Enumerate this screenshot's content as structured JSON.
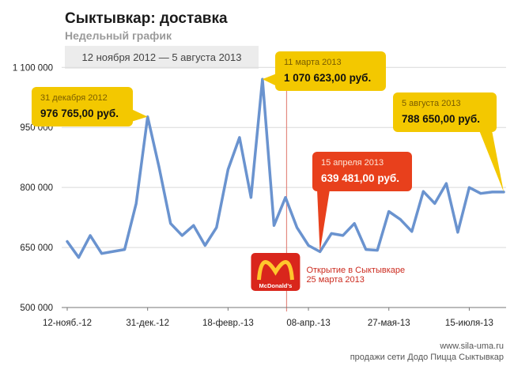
{
  "chart_data": {
    "type": "line",
    "title": "Сыктывкар: доставка",
    "subtitle": "Недельный график",
    "date_range": "12 ноября 2012 — 5 августа 2013",
    "ylim": [
      500000,
      1150000
    ],
    "y_ticks": [
      {
        "value": 500000,
        "label": "500 000"
      },
      {
        "value": 650000,
        "label": "650 000"
      },
      {
        "value": 800000,
        "label": "800 000"
      },
      {
        "value": 950000,
        "label": "950 000"
      },
      {
        "value": 1100000,
        "label": "1 100 000"
      }
    ],
    "x_ticks": [
      {
        "index": 0,
        "label": "12-нояб.-12"
      },
      {
        "index": 7,
        "label": "31-дек.-12"
      },
      {
        "index": 14,
        "label": "18-февр.-13"
      },
      {
        "index": 21,
        "label": "08-апр.-13"
      },
      {
        "index": 28,
        "label": "27-мая-13"
      },
      {
        "index": 35,
        "label": "15-июля-13"
      }
    ],
    "grid": true,
    "line_color": "#6a93cf",
    "series": [
      {
        "values": [
          665000,
          625000,
          680000,
          635000,
          640000,
          645000,
          760000,
          976765,
          850000,
          710000,
          680000,
          705000,
          655000,
          700000,
          845000,
          925000,
          775000,
          1070623,
          705000,
          775000,
          700000,
          655000,
          639481,
          685000,
          680000,
          710000,
          645000,
          643000,
          740000,
          720000,
          690000,
          790000,
          760000,
          810000,
          688000,
          800000,
          785000,
          788650,
          788650
        ]
      }
    ],
    "annotations": [
      {
        "id": "dec",
        "index": 7,
        "date": "31 декабря 2012",
        "value_text": "976 765,00 руб.",
        "style": "yellow",
        "bg": "#f3c800"
      },
      {
        "id": "mar",
        "index": 17,
        "date": "11 марта 2013",
        "value_text": "1 070 623,00 руб.",
        "style": "yellow",
        "bg": "#f3c800"
      },
      {
        "id": "apr",
        "index": 22,
        "date": "15 апреля 2013",
        "value_text": "639 481,00 руб.",
        "style": "red",
        "bg": "#e8401c"
      },
      {
        "id": "aug",
        "index": 38,
        "date": "5 августа 2013",
        "value_text": "788 650,00 руб.",
        "style": "yellow",
        "bg": "#f3c800"
      }
    ],
    "event": {
      "index": 19.1,
      "logo_text": "McDonald's",
      "label_line1": "Открытие в Сыктывкаре",
      "label_line2": "25 марта 2013",
      "line_color": "#e38a82"
    }
  },
  "footer": {
    "line1": "www.sila-uma.ru",
    "line2": "продажи сети Додо Пицца Сыктывкар"
  }
}
